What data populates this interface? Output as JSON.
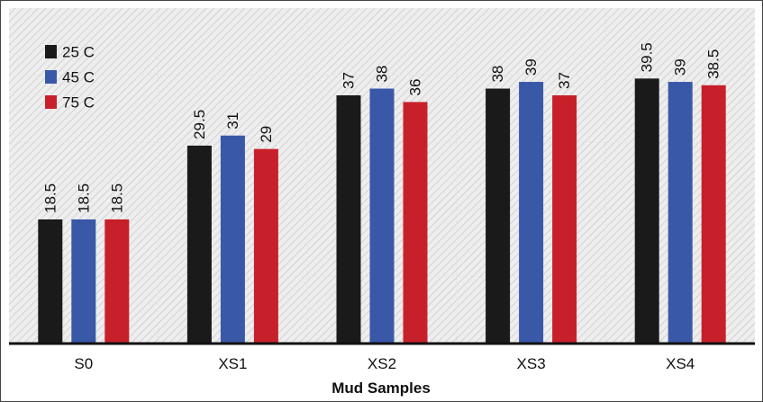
{
  "chart_data": {
    "type": "bar",
    "title": "",
    "xlabel": "Mud Samples",
    "ylabel": "",
    "categories": [
      "S0",
      "XS1",
      "XS2",
      "XS3",
      "XS4"
    ],
    "series": [
      {
        "name": "25 C",
        "color": "#1a1a1a",
        "values": [
          18.5,
          29.5,
          37,
          38,
          39.5
        ],
        "labels": [
          "18.5",
          "29.5",
          "37",
          "38",
          "39.5"
        ]
      },
      {
        "name": "45 C",
        "color": "#3a58a8",
        "values": [
          18.5,
          31,
          38,
          39,
          39
        ],
        "labels": [
          "18.5",
          "31",
          "38",
          "39",
          "39"
        ]
      },
      {
        "name": "75 C",
        "color": "#c8202a",
        "values": [
          18.5,
          29,
          36,
          37,
          38.5
        ],
        "labels": [
          "18.5",
          "29",
          "36",
          "37",
          "38.5"
        ]
      }
    ],
    "ylim": [
      0,
      50
    ],
    "grid": true,
    "legend_position": "top-left",
    "background": "hatched-gray"
  }
}
